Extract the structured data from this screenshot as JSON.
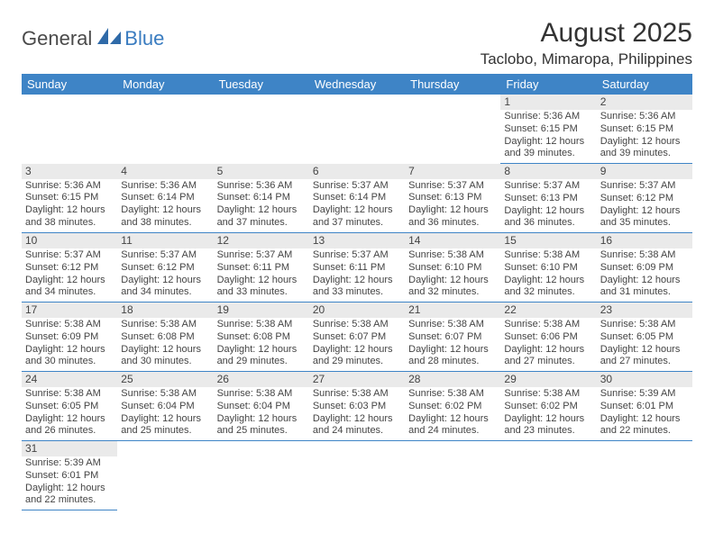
{
  "logo": {
    "text1": "General",
    "text2": "Blue",
    "color1": "#4a4a4a",
    "color2": "#3a7cc0"
  },
  "title": "August 2025",
  "location": "Taclobo, Mimaropa, Philippines",
  "header_bg": "#3e84c6",
  "header_fg": "#ffffff",
  "daynum_bg": "#eaeaea",
  "row_border": "#3e84c6",
  "day_headers": [
    "Sunday",
    "Monday",
    "Tuesday",
    "Wednesday",
    "Thursday",
    "Friday",
    "Saturday"
  ],
  "weeks": [
    [
      null,
      null,
      null,
      null,
      null,
      {
        "n": "1",
        "sr": "5:36 AM",
        "ss": "6:15 PM",
        "dl": "12 hours",
        "dm": "and 39 minutes."
      },
      {
        "n": "2",
        "sr": "5:36 AM",
        "ss": "6:15 PM",
        "dl": "12 hours",
        "dm": "and 39 minutes."
      }
    ],
    [
      {
        "n": "3",
        "sr": "5:36 AM",
        "ss": "6:15 PM",
        "dl": "12 hours",
        "dm": "and 38 minutes."
      },
      {
        "n": "4",
        "sr": "5:36 AM",
        "ss": "6:14 PM",
        "dl": "12 hours",
        "dm": "and 38 minutes."
      },
      {
        "n": "5",
        "sr": "5:36 AM",
        "ss": "6:14 PM",
        "dl": "12 hours",
        "dm": "and 37 minutes."
      },
      {
        "n": "6",
        "sr": "5:37 AM",
        "ss": "6:14 PM",
        "dl": "12 hours",
        "dm": "and 37 minutes."
      },
      {
        "n": "7",
        "sr": "5:37 AM",
        "ss": "6:13 PM",
        "dl": "12 hours",
        "dm": "and 36 minutes."
      },
      {
        "n": "8",
        "sr": "5:37 AM",
        "ss": "6:13 PM",
        "dl": "12 hours",
        "dm": "and 36 minutes."
      },
      {
        "n": "9",
        "sr": "5:37 AM",
        "ss": "6:12 PM",
        "dl": "12 hours",
        "dm": "and 35 minutes."
      }
    ],
    [
      {
        "n": "10",
        "sr": "5:37 AM",
        "ss": "6:12 PM",
        "dl": "12 hours",
        "dm": "and 34 minutes."
      },
      {
        "n": "11",
        "sr": "5:37 AM",
        "ss": "6:12 PM",
        "dl": "12 hours",
        "dm": "and 34 minutes."
      },
      {
        "n": "12",
        "sr": "5:37 AM",
        "ss": "6:11 PM",
        "dl": "12 hours",
        "dm": "and 33 minutes."
      },
      {
        "n": "13",
        "sr": "5:37 AM",
        "ss": "6:11 PM",
        "dl": "12 hours",
        "dm": "and 33 minutes."
      },
      {
        "n": "14",
        "sr": "5:38 AM",
        "ss": "6:10 PM",
        "dl": "12 hours",
        "dm": "and 32 minutes."
      },
      {
        "n": "15",
        "sr": "5:38 AM",
        "ss": "6:10 PM",
        "dl": "12 hours",
        "dm": "and 32 minutes."
      },
      {
        "n": "16",
        "sr": "5:38 AM",
        "ss": "6:09 PM",
        "dl": "12 hours",
        "dm": "and 31 minutes."
      }
    ],
    [
      {
        "n": "17",
        "sr": "5:38 AM",
        "ss": "6:09 PM",
        "dl": "12 hours",
        "dm": "and 30 minutes."
      },
      {
        "n": "18",
        "sr": "5:38 AM",
        "ss": "6:08 PM",
        "dl": "12 hours",
        "dm": "and 30 minutes."
      },
      {
        "n": "19",
        "sr": "5:38 AM",
        "ss": "6:08 PM",
        "dl": "12 hours",
        "dm": "and 29 minutes."
      },
      {
        "n": "20",
        "sr": "5:38 AM",
        "ss": "6:07 PM",
        "dl": "12 hours",
        "dm": "and 29 minutes."
      },
      {
        "n": "21",
        "sr": "5:38 AM",
        "ss": "6:07 PM",
        "dl": "12 hours",
        "dm": "and 28 minutes."
      },
      {
        "n": "22",
        "sr": "5:38 AM",
        "ss": "6:06 PM",
        "dl": "12 hours",
        "dm": "and 27 minutes."
      },
      {
        "n": "23",
        "sr": "5:38 AM",
        "ss": "6:05 PM",
        "dl": "12 hours",
        "dm": "and 27 minutes."
      }
    ],
    [
      {
        "n": "24",
        "sr": "5:38 AM",
        "ss": "6:05 PM",
        "dl": "12 hours",
        "dm": "and 26 minutes."
      },
      {
        "n": "25",
        "sr": "5:38 AM",
        "ss": "6:04 PM",
        "dl": "12 hours",
        "dm": "and 25 minutes."
      },
      {
        "n": "26",
        "sr": "5:38 AM",
        "ss": "6:04 PM",
        "dl": "12 hours",
        "dm": "and 25 minutes."
      },
      {
        "n": "27",
        "sr": "5:38 AM",
        "ss": "6:03 PM",
        "dl": "12 hours",
        "dm": "and 24 minutes."
      },
      {
        "n": "28",
        "sr": "5:38 AM",
        "ss": "6:02 PM",
        "dl": "12 hours",
        "dm": "and 24 minutes."
      },
      {
        "n": "29",
        "sr": "5:38 AM",
        "ss": "6:02 PM",
        "dl": "12 hours",
        "dm": "and 23 minutes."
      },
      {
        "n": "30",
        "sr": "5:39 AM",
        "ss": "6:01 PM",
        "dl": "12 hours",
        "dm": "and 22 minutes."
      }
    ],
    [
      {
        "n": "31",
        "sr": "5:39 AM",
        "ss": "6:01 PM",
        "dl": "12 hours",
        "dm": "and 22 minutes."
      },
      null,
      null,
      null,
      null,
      null,
      null
    ]
  ],
  "labels": {
    "sunrise": "Sunrise: ",
    "sunset": "Sunset: ",
    "daylight": "Daylight: "
  }
}
